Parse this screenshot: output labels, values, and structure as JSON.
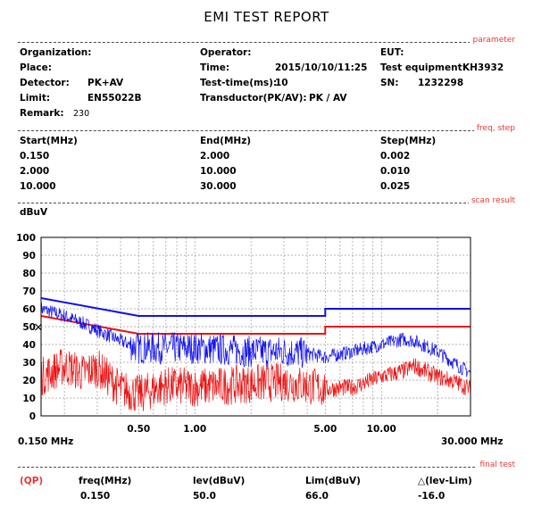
{
  "report": {
    "title": "EMI TEST REPORT"
  },
  "sections": {
    "parameter": "parameter",
    "freq_step": "freq, step",
    "scan_result": "scan result",
    "final_test": "final test"
  },
  "parameter": {
    "organization_label": "Organization:",
    "organization_value": "",
    "place_label": "Place:",
    "place_value": "",
    "detector_label": "Detector:",
    "detector_value": "PK+AV",
    "limit_label": "Limit:",
    "limit_value": "EN55022B",
    "remark_label": "Remark:",
    "remark_value": "230",
    "operator_label": "Operator:",
    "operator_value": "",
    "time_label": "Time:",
    "time_value": "2015/10/10/11:25",
    "test_time_label": "Test-time(ms):",
    "test_time_value": "10",
    "transducer_label": "Transductor(PK/AV):",
    "transducer_value": "PK  /  AV",
    "eut_label": "EUT:",
    "eut_value": "",
    "test_equipment_label": "Test equipment:",
    "test_equipment_value": "KH3932",
    "sn_label": "SN:",
    "sn_value": "1232298"
  },
  "freq_step": {
    "headers": [
      "Start(MHz)",
      "End(MHz)",
      "Step(MHz)"
    ],
    "rows": [
      [
        "0.150",
        "2.000",
        "0.002"
      ],
      [
        "2.000",
        "10.000",
        "0.010"
      ],
      [
        "10.000",
        "30.000",
        "0.025"
      ]
    ]
  },
  "chart_data": {
    "type": "line",
    "ylabel": "dBuV",
    "ylim": [
      0,
      100
    ],
    "yticks": [
      0,
      10,
      20,
      30,
      40,
      50,
      60,
      70,
      80,
      90,
      100
    ],
    "xscale": "log",
    "xlim_mhz": [
      0.15,
      30
    ],
    "xtick_labels": [
      "0.50",
      "1.00",
      "5.00",
      "10.00"
    ],
    "xtick_values": [
      0.5,
      1,
      5,
      10
    ],
    "xmin_label": "0.150 MHz",
    "xmax_label": "30.000 MHz",
    "grid": true,
    "colors": {
      "qp_limit": "#1010ee",
      "av_limit": "#ee1010",
      "pk_trace": "#1010ee",
      "av_trace": "#ee1010",
      "marker": "#000000"
    },
    "series": [
      {
        "name": "",
        "style": "limit-qp",
        "x": [
          0.15,
          0.5,
          5,
          5,
          30
        ],
        "y": [
          66,
          56,
          56,
          60,
          60
        ]
      },
      {
        "name": "",
        "style": "limit-av",
        "x": [
          0.15,
          0.5,
          5,
          5,
          30
        ],
        "y": [
          56,
          46,
          46,
          50,
          50
        ]
      },
      {
        "name": "",
        "style": "trace-pk",
        "x": [
          0.15,
          0.2,
          0.25,
          0.3,
          0.4,
          0.5,
          0.7,
          1.0,
          1.5,
          2.0,
          3.0,
          4.0,
          5.0,
          7.0,
          10.0,
          13.0,
          15.0,
          20.0,
          25.0,
          30.0
        ],
        "y": [
          60,
          56,
          52,
          48,
          42,
          38,
          38,
          38,
          37,
          36,
          36,
          35,
          33,
          36,
          40,
          43,
          42,
          36,
          29,
          24
        ]
      },
      {
        "name": "",
        "style": "trace-av",
        "x": [
          0.15,
          0.2,
          0.25,
          0.3,
          0.4,
          0.5,
          0.7,
          1.0,
          1.5,
          2.0,
          3.0,
          4.0,
          5.0,
          7.0,
          10.0,
          13.0,
          15.0,
          20.0,
          25.0,
          30.0
        ],
        "y": [
          22,
          28,
          24,
          27,
          15,
          12,
          17,
          16,
          17,
          18,
          19,
          17,
          15,
          16,
          22,
          25,
          28,
          22,
          19,
          15
        ]
      }
    ],
    "markers": [
      {
        "x": 0.15,
        "y": 50,
        "symbol": "×"
      }
    ]
  },
  "final_test": {
    "detector": "(QP)",
    "headers": {
      "freq": "freq(MHz)",
      "lev": "lev(dBuV)",
      "lim": "Lim(dBuV)",
      "delta": "△(lev-Lim)"
    },
    "row": {
      "freq": "0.150",
      "lev": "50.0",
      "lim": "66.0",
      "delta": "-16.0"
    }
  }
}
